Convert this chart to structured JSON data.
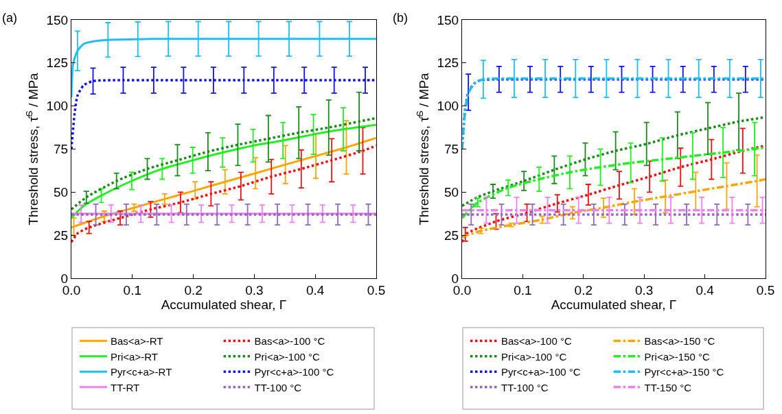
{
  "chart_data": [
    {
      "type": "line",
      "annotations": [
        "(a)"
      ],
      "xlabel": "Accumulated shear, Γ",
      "ylabel": "Threshold stress, τ̂$^{S}$ / MPa",
      "xlim": [
        0,
        0.5
      ],
      "xticks": [
        {
          "value": 0,
          "label": "0.0"
        },
        0.1,
        0.2,
        0.3,
        0.4,
        0.5
      ],
      "ylim": [
        0,
        150
      ],
      "yticks": [
        0,
        25,
        50,
        75,
        100,
        125,
        150
      ],
      "grid": false,
      "legend": "bottom",
      "marker": "none",
      "series": [
        {
          "name": "Bas<a>-RT",
          "color": "#ffa500",
          "line_style": "solid",
          "x": [
            0,
            0.004,
            0.054,
            0.103,
            0.153,
            0.203,
            0.252,
            0.302,
            0.351,
            0.401,
            0.451,
            0.5
          ],
          "values": [
            29.5,
            30,
            36,
            41,
            46,
            51,
            56,
            61,
            66,
            71,
            76,
            81.5
          ],
          "errors": [
            null,
            5,
            3,
            2,
            3,
            5,
            7,
            9,
            11,
            13,
            15.5,
            null
          ]
        },
        {
          "name": "Bas<a>-100 °C",
          "color": "#ee1111",
          "line_style": "dotted",
          "x": [
            0,
            0.01,
            0.029,
            0.08,
            0.13,
            0.179,
            0.229,
            0.278,
            0.328,
            0.377,
            0.427,
            0.478,
            0.5
          ],
          "values": [
            21,
            26,
            29.5,
            35,
            40,
            44,
            49,
            53.5,
            59,
            63.5,
            68.5,
            74,
            77
          ],
          "errors": [
            null,
            null,
            3.5,
            4,
            4.5,
            6,
            7,
            8,
            10,
            11,
            12.5,
            13.5,
            null
          ]
        },
        {
          "name": "Pri<a>-RT",
          "color": "#22ee22",
          "line_style": "solid",
          "x": [
            0,
            0.02,
            0.049,
            0.099,
            0.149,
            0.199,
            0.248,
            0.298,
            0.347,
            0.397,
            0.446,
            0.5
          ],
          "values": [
            35,
            42,
            48,
            56.5,
            63.5,
            68.5,
            73,
            77,
            80,
            83.5,
            86.5,
            89
          ],
          "errors": [
            null,
            null,
            4,
            5,
            6,
            7.5,
            8.5,
            9.5,
            10.5,
            11.5,
            12.5,
            null
          ]
        },
        {
          "name": "Pri<a>-100 °C",
          "color": "#1a8a1a",
          "line_style": "dotted",
          "x": [
            0,
            0.0245,
            0.074,
            0.1245,
            0.174,
            0.224,
            0.273,
            0.323,
            0.373,
            0.422,
            0.472,
            0.5
          ],
          "values": [
            40,
            47,
            56.5,
            63.5,
            68.5,
            73.5,
            77.5,
            81,
            84.5,
            87.5,
            91,
            93
          ],
          "errors": [
            null,
            3.5,
            4.5,
            6,
            9,
            11,
            12,
            13.5,
            15,
            16,
            17,
            null
          ]
        },
        {
          "name": "Pyr<c+a>-RT",
          "color": "#1ebef0",
          "line_style": "solid",
          "x": [
            0,
            0.003,
            0.01,
            0.02,
            0.035,
            0.06,
            0.109,
            0.159,
            0.208,
            0.258,
            0.307,
            0.357,
            0.407,
            0.456,
            0.5
          ],
          "values": [
            105,
            125,
            132,
            136,
            137.5,
            138.4,
            138.8,
            139,
            139,
            139,
            139,
            139,
            139,
            139,
            139
          ],
          "errors": [
            null,
            null,
            11.5,
            null,
            null,
            10,
            10,
            10,
            10,
            10,
            10,
            10,
            10,
            10,
            null
          ]
        },
        {
          "name": "Pyr<c+a>-100 °C",
          "color": "#1111ee",
          "line_style": "dotted",
          "x": [
            0,
            0.005,
            0.01,
            0.02,
            0.0355,
            0.085,
            0.135,
            0.184,
            0.233,
            0.283,
            0.332,
            0.382,
            0.431,
            0.482,
            0.5
          ],
          "values": [
            75,
            95,
            106,
            112,
            114.5,
            115,
            115,
            115,
            115,
            115,
            115,
            115,
            115,
            115,
            115
          ],
          "errors": [
            null,
            null,
            null,
            null,
            7.5,
            7.5,
            7.5,
            7.5,
            7.5,
            7.5,
            7.5,
            7.5,
            7.5,
            7.5,
            null
          ]
        },
        {
          "name": "TT-RT",
          "color": "#ee82ee",
          "line_style": "solid",
          "x": [
            0,
            0.016,
            0.065,
            0.114,
            0.164,
            0.213,
            0.263,
            0.313,
            0.362,
            0.412,
            0.462,
            0.5
          ],
          "values": [
            37.5,
            37.5,
            37.5,
            37.5,
            37.5,
            37.5,
            37.5,
            37.5,
            37.5,
            37.5,
            37.5,
            37.5
          ],
          "errors": [
            null,
            5,
            5,
            5,
            5,
            5,
            5,
            5,
            5,
            5,
            5,
            null
          ]
        },
        {
          "name": "TT-100 °C",
          "color": "#9467bd",
          "line_style": "dotted",
          "x": [
            0,
            0.04,
            0.09,
            0.14,
            0.189,
            0.239,
            0.289,
            0.338,
            0.388,
            0.437,
            0.487,
            0.5
          ],
          "values": [
            37,
            37,
            37,
            37,
            37,
            37,
            37,
            37,
            37,
            37,
            37,
            37
          ],
          "errors": [
            null,
            6,
            6,
            6,
            6,
            6,
            6,
            6,
            6,
            6,
            6,
            null
          ]
        }
      ]
    },
    {
      "type": "line",
      "annotations": [
        "(b)"
      ],
      "xlabel": "Accumulated shear, Γ",
      "ylabel": "Threshold stress, τ̂$^{S}$ / MPa",
      "xlim": [
        0,
        0.5
      ],
      "xticks": [
        {
          "value": 0,
          "label": "0.0"
        },
        0.1,
        0.2,
        0.3,
        0.4,
        0.5
      ],
      "ylim": [
        0,
        150
      ],
      "yticks": [
        0,
        25,
        50,
        75,
        100,
        125,
        150
      ],
      "grid": false,
      "legend": "bottom",
      "marker": "none",
      "series": [
        {
          "name": "Bas<a>-100 °C",
          "color": "#ee1111",
          "line_style": "dotted",
          "x": [
            0,
            0.0054,
            0.056,
            0.107,
            0.157,
            0.208,
            0.259,
            0.309,
            0.36,
            0.411,
            0.4625,
            0.5
          ],
          "values": [
            21,
            25.5,
            33,
            38,
            43.5,
            48.5,
            54,
            59,
            64.5,
            69,
            74,
            77
          ],
          "errors": [
            null,
            4,
            4.5,
            5,
            5,
            6,
            8,
            9,
            11,
            11.5,
            13,
            null
          ]
        },
        {
          "name": "Bas<a>-150 °C",
          "color": "#ffa500",
          "line_style": "dashdot",
          "x": [
            0,
            0.031,
            0.081,
            0.132,
            0.182,
            0.233,
            0.284,
            0.335,
            0.385,
            0.436,
            0.486,
            0.5
          ],
          "values": [
            24,
            27.5,
            31,
            34,
            38,
            41,
            44.5,
            47.5,
            50.5,
            53.5,
            56.5,
            57.5
          ],
          "errors": [
            null,
            1.5,
            1,
            2,
            3.5,
            5.5,
            7.5,
            9.5,
            11,
            13.5,
            15,
            null
          ]
        },
        {
          "name": "Pri<a>-100 °C",
          "color": "#1a8a1a",
          "line_style": "dotted",
          "x": [
            0,
            0.025,
            0.051,
            0.102,
            0.152,
            0.203,
            0.253,
            0.304,
            0.355,
            0.405,
            0.456,
            0.5
          ],
          "values": [
            42,
            47,
            50.5,
            56.5,
            63,
            69,
            74,
            78,
            83,
            87,
            91,
            93.5
          ],
          "errors": [
            null,
            null,
            4,
            5.5,
            8,
            9.5,
            11,
            12.5,
            13.5,
            15,
            16.5,
            null
          ]
        },
        {
          "name": "Pri<a>-150 °C",
          "color": "#22ee22",
          "line_style": "dashdot",
          "x": [
            0,
            0.026,
            0.076,
            0.127,
            0.1775,
            0.228,
            0.278,
            0.33,
            0.38,
            0.43,
            0.482,
            0.5
          ],
          "values": [
            35,
            44,
            52.5,
            57.5,
            61.5,
            64.5,
            67,
            69,
            71,
            73,
            75,
            76
          ],
          "errors": [
            null,
            2.5,
            4.5,
            7,
            9.5,
            10.5,
            11.5,
            12.5,
            13.5,
            14.5,
            15.5,
            null
          ]
        },
        {
          "name": "Pyr<c+a>-100 °C",
          "color": "#1111ee",
          "line_style": "dotted",
          "x": [
            0,
            0.005,
            0.0104,
            0.02,
            0.03,
            0.061,
            0.112,
            0.162,
            0.2125,
            0.263,
            0.314,
            0.364,
            0.415,
            0.467,
            0.5
          ],
          "values": [
            75,
            98,
            108,
            113,
            115,
            115.5,
            115.5,
            115.5,
            115.5,
            115.5,
            115.5,
            115.5,
            115.5,
            115.5,
            115.5
          ],
          "errors": [
            null,
            null,
            10.5,
            null,
            null,
            7.5,
            7.5,
            7.5,
            7.5,
            7.5,
            7.5,
            7.5,
            7.5,
            7.5,
            null
          ]
        },
        {
          "name": "Pyr<c+a>-150 °C",
          "color": "#1ebef0",
          "line_style": "dashdot",
          "x": [
            0,
            0.005,
            0.01,
            0.02,
            0.035,
            0.086,
            0.137,
            0.187,
            0.238,
            0.289,
            0.34,
            0.39,
            0.441,
            0.492,
            0.5
          ],
          "values": [
            75,
            97,
            107,
            113,
            115.5,
            116,
            116,
            116,
            116,
            116,
            116,
            116,
            116,
            116,
            116
          ],
          "errors": [
            null,
            null,
            null,
            null,
            11,
            11,
            11,
            11,
            11,
            11,
            11,
            11,
            11,
            11,
            null
          ]
        },
        {
          "name": "TT-100 °C",
          "color": "#9467bd",
          "line_style": "dotted",
          "x": [
            0,
            0.015,
            0.065,
            0.116,
            0.167,
            0.217,
            0.268,
            0.319,
            0.37,
            0.42,
            0.471,
            0.5
          ],
          "values": [
            37,
            37,
            37,
            37,
            37,
            37,
            37,
            37,
            37,
            37,
            37,
            37
          ],
          "errors": [
            null,
            6,
            6,
            6,
            6,
            6,
            6,
            6,
            6,
            6,
            6,
            null
          ]
        },
        {
          "name": "TT-150 °C",
          "color": "#ee82ee",
          "line_style": "dashdot",
          "x": [
            0,
            0.04,
            0.09,
            0.141,
            0.192,
            0.2425,
            0.293,
            0.344,
            0.395,
            0.445,
            0.495,
            0.5
          ],
          "values": [
            39.5,
            39.5,
            39.5,
            39.5,
            39.5,
            39.5,
            39.5,
            39.5,
            39.5,
            39.5,
            39.5,
            39.5
          ],
          "errors": [
            null,
            7.5,
            7.5,
            7.5,
            7.5,
            7.5,
            7.5,
            7.5,
            7.5,
            7.5,
            7.5,
            null
          ]
        }
      ]
    }
  ]
}
